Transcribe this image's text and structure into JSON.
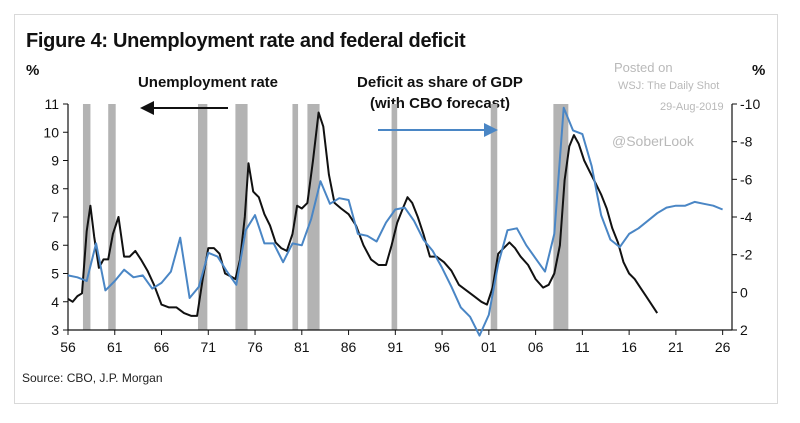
{
  "page": {
    "title": "Figure 4: Unemployment rate and federal deficit",
    "unit_left": "%",
    "unit_right": "%",
    "annotation_unemployment": "Unemployment rate",
    "annotation_deficit_line1": "Deficit as share of GDP",
    "annotation_deficit_line2": "(with CBO forecast)",
    "watermark_line1": "Posted on",
    "watermark_line2": "WSJ: The Daily Shot",
    "watermark_date": "29-Aug-2019",
    "watermark_handle": "@SoberLook",
    "source": "Source: CBO, J.P. Morgan"
  },
  "colors": {
    "unemployment": "#111111",
    "deficit": "#4a86c5",
    "recession": "#b3b3b3",
    "arrow_unemployment": "#111111",
    "arrow_deficit": "#4a86c5"
  },
  "chart_data": {
    "type": "line",
    "title": "Figure 4: Unemployment rate and federal deficit",
    "x_range": [
      1956,
      2027
    ],
    "x_ticks": [
      "56",
      "61",
      "66",
      "71",
      "76",
      "81",
      "86",
      "91",
      "96",
      "01",
      "06",
      "11",
      "16",
      "21",
      "26"
    ],
    "left_axis": {
      "label": "Unemployment rate (%)",
      "range": [
        3,
        11
      ],
      "ticks": [
        "3",
        "4",
        "5",
        "6",
        "7",
        "8",
        "9",
        "10",
        "11"
      ]
    },
    "right_axis": {
      "label": "Deficit as share of GDP (%)",
      "range": [
        2,
        -10
      ],
      "inverted": true,
      "ticks": [
        "2",
        "0",
        "-2",
        "-4",
        "-6",
        "-8",
        "-10"
      ]
    },
    "recessions": [
      [
        1957.6,
        1958.4
      ],
      [
        1960.3,
        1961.1
      ],
      [
        1969.9,
        1970.9
      ],
      [
        1973.9,
        1975.2
      ],
      [
        1980.0,
        1980.6
      ],
      [
        1981.6,
        1982.9
      ],
      [
        1990.6,
        1991.2
      ],
      [
        2001.2,
        2001.9
      ],
      [
        2007.9,
        2009.5
      ]
    ],
    "series": [
      {
        "name": "Unemployment rate",
        "axis": "left",
        "x": [
          1956,
          1956.5,
          1957,
          1957.5,
          1958,
          1958.4,
          1958.8,
          1959.3,
          1959.8,
          1960.3,
          1960.8,
          1961.4,
          1962,
          1962.6,
          1963.2,
          1963.8,
          1964.5,
          1965.2,
          1966,
          1966.8,
          1967.6,
          1968.4,
          1969.2,
          1969.8,
          1970.4,
          1971,
          1971.6,
          1972.2,
          1972.8,
          1973.4,
          1973.9,
          1974.4,
          1974.9,
          1975.3,
          1975.8,
          1976.4,
          1977,
          1977.6,
          1978.2,
          1978.8,
          1979.4,
          1980,
          1980.5,
          1981,
          1981.6,
          1982.2,
          1982.8,
          1983.3,
          1983.9,
          1984.5,
          1985.2,
          1986,
          1986.8,
          1987.6,
          1988.4,
          1989.2,
          1990,
          1990.6,
          1991.2,
          1991.8,
          1992.3,
          1992.8,
          1993.4,
          1994,
          1994.7,
          1995.4,
          1996.2,
          1997,
          1997.8,
          1998.6,
          1999.4,
          2000.2,
          2000.8,
          2001.4,
          2002,
          2002.6,
          2003.2,
          2003.8,
          2004.4,
          2005.2,
          2006,
          2006.8,
          2007.4,
          2008,
          2008.6,
          2009.1,
          2009.6,
          2010.1,
          2010.6,
          2011.2,
          2011.8,
          2012.4,
          2013,
          2013.6,
          2014.2,
          2014.8,
          2015.4,
          2016,
          2016.6,
          2017.2,
          2017.8,
          2018.4,
          2019
        ],
        "values": [
          4.1,
          4.0,
          4.2,
          4.3,
          6.5,
          7.4,
          6.3,
          5.2,
          5.5,
          5.5,
          6.4,
          7.0,
          5.6,
          5.6,
          5.8,
          5.5,
          5.1,
          4.6,
          3.9,
          3.8,
          3.8,
          3.6,
          3.5,
          3.5,
          4.8,
          5.9,
          5.9,
          5.7,
          5.0,
          4.9,
          4.8,
          5.5,
          7.0,
          8.9,
          7.9,
          7.7,
          7.1,
          6.7,
          6.1,
          5.9,
          5.8,
          6.4,
          7.4,
          7.3,
          7.5,
          9.0,
          10.7,
          10.2,
          8.5,
          7.5,
          7.3,
          7.1,
          6.7,
          6.0,
          5.5,
          5.3,
          5.3,
          6.0,
          6.8,
          7.3,
          7.7,
          7.5,
          7.0,
          6.4,
          5.6,
          5.6,
          5.4,
          5.1,
          4.6,
          4.4,
          4.2,
          4.0,
          3.9,
          4.5,
          5.7,
          5.9,
          6.1,
          5.9,
          5.6,
          5.3,
          4.8,
          4.5,
          4.6,
          5.0,
          6.0,
          8.3,
          9.5,
          9.9,
          9.6,
          9.0,
          8.6,
          8.2,
          7.8,
          7.3,
          6.6,
          6.1,
          5.4,
          5.0,
          4.8,
          4.5,
          4.2,
          3.9,
          3.6
        ],
        "color": "#111111"
      },
      {
        "name": "Deficit as share of GDP (with CBO forecast)",
        "axis": "right",
        "x": [
          1956,
          1957,
          1958,
          1959,
          1960,
          1961,
          1962,
          1963,
          1964,
          1965,
          1966,
          1967,
          1968,
          1969,
          1970,
          1971,
          1972,
          1973,
          1974,
          1975,
          1976,
          1977,
          1978,
          1979,
          1980,
          1981,
          1982,
          1983,
          1984,
          1985,
          1986,
          1987,
          1988,
          1989,
          1990,
          1991,
          1992,
          1993,
          1994,
          1995,
          1996,
          1997,
          1998,
          1999,
          2000,
          2001,
          2002,
          2003,
          2004,
          2005,
          2006,
          2007,
          2008,
          2009,
          2010,
          2011,
          2012,
          2013,
          2014,
          2015,
          2016,
          2017,
          2018,
          2019,
          2020,
          2021,
          2022,
          2023,
          2024,
          2025,
          2026
        ],
        "values": [
          -0.9,
          -0.8,
          -0.6,
          -2.6,
          -0.1,
          -0.6,
          -1.2,
          -0.8,
          -0.9,
          -0.2,
          -0.5,
          -1.1,
          -2.9,
          0.3,
          -0.3,
          -2.1,
          -1.9,
          -1.1,
          -0.4,
          -3.3,
          -4.1,
          -2.6,
          -2.6,
          -1.6,
          -2.6,
          -2.5,
          -3.9,
          -5.9,
          -4.7,
          -5.0,
          -4.9,
          -3.1,
          -3.0,
          -2.7,
          -3.7,
          -4.4,
          -4.5,
          -3.8,
          -2.8,
          -2.2,
          -1.3,
          -0.3,
          0.8,
          1.3,
          2.3,
          1.2,
          -1.5,
          -3.3,
          -3.4,
          -2.5,
          -1.8,
          -1.1,
          -3.1,
          -9.8,
          -8.6,
          -8.4,
          -6.7,
          -4.1,
          -2.8,
          -2.4,
          -3.1,
          -3.4,
          -3.8,
          -4.2,
          -4.5,
          -4.6,
          -4.6,
          -4.8,
          -4.7,
          -4.6,
          -4.4
        ],
        "color": "#4a86c5"
      }
    ],
    "annotations": [
      "Unemployment rate",
      "Deficit as share of GDP",
      "(with CBO forecast)"
    ],
    "source": "Source: CBO, J.P. Morgan"
  }
}
